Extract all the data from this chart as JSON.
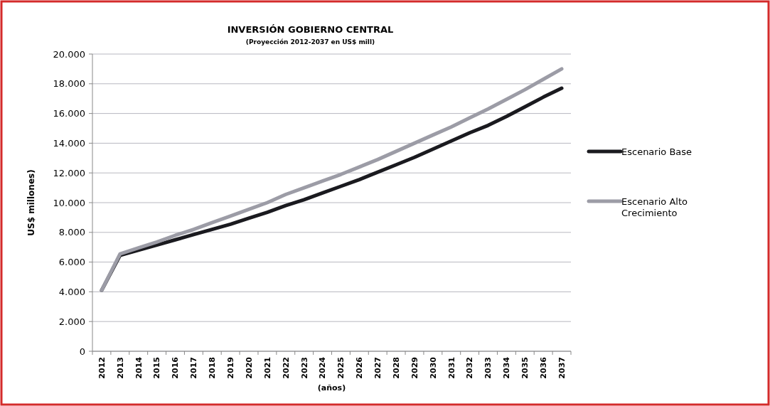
{
  "chart_data": {
    "type": "line",
    "title": "INVERSIÓN GOBIERNO CENTRAL",
    "subtitle": "(Proyección 2012-2037 en US$ mill)",
    "xlabel": "(años)",
    "ylabel": "US$ millones)",
    "categories": [
      "2012",
      "2013",
      "2014",
      "2015",
      "2016",
      "2017",
      "2018",
      "2019",
      "2020",
      "2021",
      "2022",
      "2023",
      "2024",
      "2025",
      "2026",
      "2027",
      "2028",
      "2029",
      "2030",
      "2031",
      "2032",
      "2033",
      "2034",
      "2035",
      "2036",
      "2037"
    ],
    "series": [
      {
        "name": "Escenario Base",
        "color": "#1a1a1f",
        "values": [
          4100,
          6450,
          6800,
          7150,
          7500,
          7850,
          8200,
          8550,
          8950,
          9350,
          9800,
          10200,
          10650,
          11100,
          11550,
          12050,
          12550,
          13050,
          13600,
          14150,
          14700,
          15200,
          15800,
          16450,
          17100,
          17700
        ]
      },
      {
        "name": "Escenario Alto Crecimiento",
        "color": "#9c9ca6",
        "values": [
          4100,
          6550,
          6950,
          7350,
          7800,
          8200,
          8650,
          9100,
          9550,
          10000,
          10550,
          11000,
          11450,
          11900,
          12400,
          12900,
          13450,
          14000,
          14550,
          15100,
          15700,
          16300,
          16950,
          17600,
          18300,
          19000
        ]
      }
    ],
    "ylim": [
      0,
      20000
    ],
    "yticks": [
      0,
      {
        "value": 2000,
        "label": "2.000"
      },
      {
        "value": 4000,
        "label": "4.000"
      },
      {
        "value": 6000,
        "label": "6.000"
      },
      {
        "value": 8000,
        "label": "8.000"
      },
      {
        "value": 10000,
        "label": "10.000"
      },
      {
        "value": 12000,
        "label": "12.000"
      },
      {
        "value": 14000,
        "label": "14.000"
      },
      {
        "value": 16000,
        "label": "16.000"
      },
      {
        "value": 18000,
        "label": "18.000"
      },
      {
        "value": 20000,
        "label": "20.000"
      }
    ],
    "grid": "y",
    "legend": "right",
    "marker": "none",
    "line_style": "solid"
  }
}
